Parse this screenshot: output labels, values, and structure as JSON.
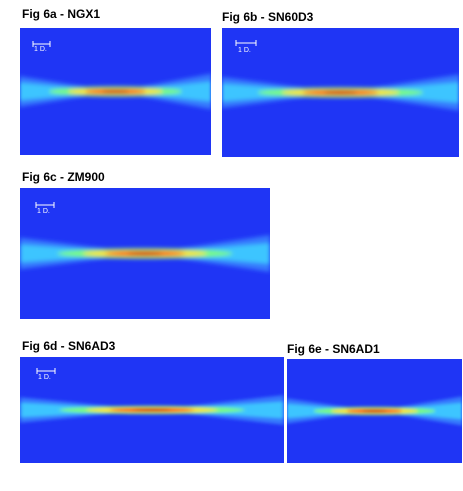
{
  "panels": [
    {
      "title": "Fig 6a - NGX1",
      "scale_label": "1 D."
    },
    {
      "title": "Fig 6b - SN60D3",
      "scale_label": "1 D."
    },
    {
      "title": "Fig 6c - ZM900",
      "scale_label": "1 D."
    },
    {
      "title": "Fig 6d - SN6AD3",
      "scale_label": "1 D."
    },
    {
      "title": "Fig 6e - SN6AD1"
    }
  ]
}
